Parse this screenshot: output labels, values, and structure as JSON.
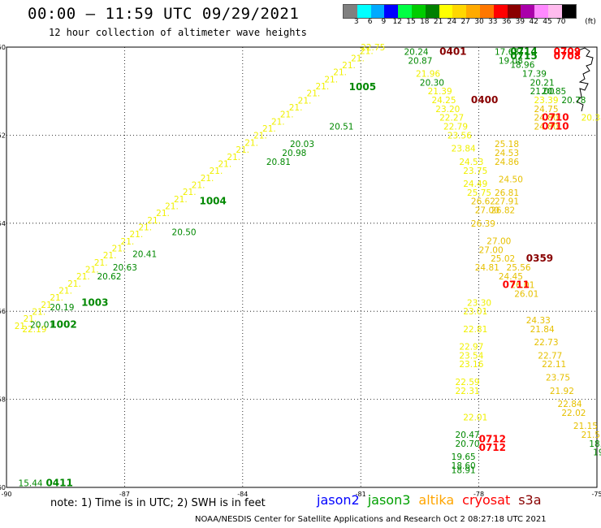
{
  "header": {
    "title": "00:00 – 11:59 UTC 09/29/2021",
    "subtitle": "12 hour collection of altimeter wave heights"
  },
  "colorbar": {
    "unit": "(ft)",
    "ticks": [
      "3",
      "6",
      "9",
      "12",
      "15",
      "18",
      "21",
      "24",
      "27",
      "30",
      "33",
      "36",
      "39",
      "42",
      "45",
      "70"
    ],
    "colors": [
      "#808080",
      "#00ffff",
      "#00aaff",
      "#0000ff",
      "#00ff44",
      "#00cc00",
      "#008000",
      "#ffff00",
      "#ffd700",
      "#ffaa00",
      "#ff7700",
      "#ff0000",
      "#8b0000",
      "#aa00aa",
      "#ff88ff",
      "#ffbbee",
      "#000000"
    ]
  },
  "axes": {
    "lon_ticks": [
      -90,
      -87,
      -84,
      -81,
      -78,
      -75
    ],
    "lat_ticks": [
      -50,
      -52,
      -54,
      -56,
      -58,
      -60
    ],
    "lon_range": [
      -90,
      -75
    ],
    "lat_range": [
      -50,
      -60
    ],
    "grid": "dotted"
  },
  "colors": {
    "jason3": "#007700",
    "altika": "#e6c000",
    "yellow_track": "#f0f000",
    "cryosat": "#ff0000",
    "s3a": "#880000",
    "green_track": "#008800"
  },
  "tracks": [
    {
      "sat": "jason3",
      "labels": [
        {
          "lon": -89.6,
          "lat": -56.4,
          "text": "22.19",
          "c": "yellow_track"
        },
        {
          "lon": -89.4,
          "lat": -56.3,
          "text": "20.01",
          "c": "green_track"
        },
        {
          "lon": -88.9,
          "lat": -55.9,
          "text": "20.19",
          "c": "green_track"
        },
        {
          "lon": -87.7,
          "lat": -55.2,
          "text": "20.62",
          "c": "green_track"
        },
        {
          "lon": -87.3,
          "lat": -55.0,
          "text": "20.63",
          "c": "green_track"
        },
        {
          "lon": -86.8,
          "lat": -54.7,
          "text": "20.41",
          "c": "green_track"
        },
        {
          "lon": -85.8,
          "lat": -54.2,
          "text": "20.50",
          "c": "green_track"
        },
        {
          "lon": -83.4,
          "lat": -52.6,
          "text": "20.81",
          "c": "green_track"
        },
        {
          "lon": -83.0,
          "lat": -52.4,
          "text": "20.98",
          "c": "green_track"
        },
        {
          "lon": -82.8,
          "lat": -52.2,
          "text": "20.03",
          "c": "green_track"
        },
        {
          "lon": -81.8,
          "lat": -51.8,
          "text": "20.51",
          "c": "green_track"
        },
        {
          "lon": -79.9,
          "lat": -50.1,
          "text": "20.24",
          "c": "green_track"
        },
        {
          "lon": -79.8,
          "lat": -50.3,
          "text": "20.87",
          "c": "green_track"
        },
        {
          "lon": -79.6,
          "lat": -50.6,
          "text": "21.96",
          "c": "yellow_track"
        },
        {
          "lon": -79.5,
          "lat": -50.8,
          "text": "20.30",
          "c": "green_track"
        },
        {
          "lon": -79.3,
          "lat": -51.0,
          "text": "21.39",
          "c": "yellow_track"
        },
        {
          "lon": -79.2,
          "lat": -51.2,
          "text": "24.25",
          "c": "yellow_track"
        },
        {
          "lon": -79.1,
          "lat": -51.4,
          "text": "23.20",
          "c": "yellow_track"
        },
        {
          "lon": -79.0,
          "lat": -51.6,
          "text": "22.27",
          "c": "yellow_track"
        },
        {
          "lon": -78.9,
          "lat": -51.8,
          "text": "22.79",
          "c": "yellow_track"
        },
        {
          "lon": -78.8,
          "lat": -52.0,
          "text": "23.56",
          "c": "yellow_track"
        },
        {
          "lon": -78.7,
          "lat": -52.3,
          "text": "23.84",
          "c": "yellow_track"
        },
        {
          "lon": -78.5,
          "lat": -52.6,
          "text": "24.53",
          "c": "yellow_track"
        },
        {
          "lon": -78.4,
          "lat": -52.8,
          "text": "23.75",
          "c": "yellow_track"
        },
        {
          "lon": -78.4,
          "lat": -53.1,
          "text": "24.49",
          "c": "yellow_track"
        },
        {
          "lon": -78.3,
          "lat": -53.3,
          "text": "25.75",
          "c": "yellow_track"
        },
        {
          "lon": -78.2,
          "lat": -53.5,
          "text": "26.62",
          "c": "altika"
        },
        {
          "lon": -78.1,
          "lat": -53.7,
          "text": "27.00",
          "c": "altika"
        },
        {
          "lon": -78.2,
          "lat": -54.0,
          "text": "26.39",
          "c": "altika"
        },
        {
          "lon": -78.0,
          "lat": -54.6,
          "text": "27.00",
          "c": "altika"
        },
        {
          "lon": -78.1,
          "lat": -55.0,
          "text": "24.81",
          "c": "altika"
        },
        {
          "lon": -78.3,
          "lat": -55.8,
          "text": "23.30",
          "c": "yellow_track"
        },
        {
          "lon": -78.4,
          "lat": -56.0,
          "text": "23.01",
          "c": "yellow_track"
        },
        {
          "lon": -78.4,
          "lat": -56.4,
          "text": "22.81",
          "c": "yellow_track"
        },
        {
          "lon": -78.5,
          "lat": -56.8,
          "text": "22.97",
          "c": "yellow_track"
        },
        {
          "lon": -78.5,
          "lat": -57.0,
          "text": "23.54",
          "c": "yellow_track"
        },
        {
          "lon": -78.5,
          "lat": -57.2,
          "text": "23.16",
          "c": "yellow_track"
        },
        {
          "lon": -78.6,
          "lat": -57.6,
          "text": "22.59",
          "c": "yellow_track"
        },
        {
          "lon": -78.6,
          "lat": -57.8,
          "text": "22.31",
          "c": "yellow_track"
        },
        {
          "lon": -78.4,
          "lat": -58.4,
          "text": "22.01",
          "c": "yellow_track"
        },
        {
          "lon": -78.6,
          "lat": -58.8,
          "text": "20.47",
          "c": "green_track"
        },
        {
          "lon": -78.6,
          "lat": -59.0,
          "text": "20.70",
          "c": "green_track"
        },
        {
          "lon": -78.7,
          "lat": -59.3,
          "text": "19.65",
          "c": "green_track"
        },
        {
          "lon": -78.7,
          "lat": -59.5,
          "text": "18.60",
          "c": "green_track"
        },
        {
          "lon": -78.7,
          "lat": -59.6,
          "text": "18.91",
          "c": "green_track"
        }
      ]
    },
    {
      "sat": "altika",
      "labels": [
        {
          "lon": -77.6,
          "lat": -52.2,
          "text": "25.18",
          "c": "altika"
        },
        {
          "lon": -77.6,
          "lat": -52.4,
          "text": "24.53",
          "c": "altika"
        },
        {
          "lon": -77.6,
          "lat": -52.6,
          "text": "24.86",
          "c": "altika"
        },
        {
          "lon": -77.5,
          "lat": -53.0,
          "text": "24.50",
          "c": "altika"
        },
        {
          "lon": -77.6,
          "lat": -53.3,
          "text": "26.81",
          "c": "altika"
        },
        {
          "lon": -77.6,
          "lat": -53.5,
          "text": "27.91",
          "c": "altika"
        },
        {
          "lon": -77.7,
          "lat": -53.7,
          "text": "26.82",
          "c": "altika"
        },
        {
          "lon": -77.8,
          "lat": -54.4,
          "text": "27.00",
          "c": "altika"
        },
        {
          "lon": -77.7,
          "lat": -54.8,
          "text": "25.02",
          "c": "altika"
        },
        {
          "lon": -77.3,
          "lat": -55.0,
          "text": "25.56",
          "c": "altika"
        },
        {
          "lon": -77.5,
          "lat": -55.2,
          "text": "24.45",
          "c": "altika"
        },
        {
          "lon": -77.2,
          "lat": -55.4,
          "text": "26.01",
          "c": "altika"
        },
        {
          "lon": -77.1,
          "lat": -55.6,
          "text": "26.01",
          "c": "altika"
        },
        {
          "lon": -76.8,
          "lat": -56.2,
          "text": "24.33",
          "c": "altika"
        },
        {
          "lon": -76.7,
          "lat": -56.4,
          "text": "21.84",
          "c": "altika"
        },
        {
          "lon": -76.6,
          "lat": -56.7,
          "text": "22.73",
          "c": "altika"
        },
        {
          "lon": -76.5,
          "lat": -57.0,
          "text": "22.77",
          "c": "altika"
        },
        {
          "lon": -76.4,
          "lat": -57.2,
          "text": "22.11",
          "c": "altika"
        },
        {
          "lon": -76.3,
          "lat": -57.5,
          "text": "23.75",
          "c": "altika"
        },
        {
          "lon": -76.2,
          "lat": -57.8,
          "text": "21.92",
          "c": "altika"
        },
        {
          "lon": -76.0,
          "lat": -58.1,
          "text": "22.84",
          "c": "altika"
        },
        {
          "lon": -75.9,
          "lat": -58.3,
          "text": "22.02",
          "c": "altika"
        },
        {
          "lon": -75.6,
          "lat": -58.6,
          "text": "21.15",
          "c": "altika"
        },
        {
          "lon": -75.4,
          "lat": -58.8,
          "text": "21.5",
          "c": "altika"
        },
        {
          "lon": -75.2,
          "lat": -59.0,
          "text": "18.7",
          "c": "green_track"
        },
        {
          "lon": -75.1,
          "lat": -59.2,
          "text": "19",
          "c": "green_track"
        },
        {
          "lon": -77.6,
          "lat": -50.1,
          "text": "17.68",
          "c": "green_track"
        },
        {
          "lon": -77.5,
          "lat": -50.3,
          "text": "19.08",
          "c": "green_track"
        },
        {
          "lon": -77.2,
          "lat": -50.4,
          "text": "18.96",
          "c": "green_track"
        },
        {
          "lon": -76.9,
          "lat": -50.6,
          "text": "17.39",
          "c": "green_track"
        },
        {
          "lon": -76.7,
          "lat": -50.8,
          "text": "20.21",
          "c": "green_track"
        },
        {
          "lon": -76.7,
          "lat": -51.0,
          "text": "21.00",
          "c": "green_track"
        },
        {
          "lon": -76.4,
          "lat": -51.0,
          "text": "20.85",
          "c": "green_track"
        },
        {
          "lon": -76.6,
          "lat": -51.2,
          "text": "23.39",
          "c": "yellow_track"
        },
        {
          "lon": -76.6,
          "lat": -51.4,
          "text": "24.75",
          "c": "altika"
        },
        {
          "lon": -76.6,
          "lat": -51.6,
          "text": "24.80",
          "c": "altika"
        },
        {
          "lon": -76.6,
          "lat": -51.8,
          "text": "24.80",
          "c": "altika"
        },
        {
          "lon": -75.9,
          "lat": -51.2,
          "text": "20.78",
          "c": "green_track"
        },
        {
          "lon": -75.4,
          "lat": -51.6,
          "text": "20.38",
          "c": "yellow_track"
        }
      ]
    }
  ],
  "pass_ids": [
    {
      "lon": -88.9,
      "lat": -56.3,
      "text": "1002",
      "c": "green_track"
    },
    {
      "lon": -88.1,
      "lat": -55.8,
      "text": "1003",
      "c": "green_track"
    },
    {
      "lon": -85.1,
      "lat": -53.5,
      "text": "1004",
      "c": "green_track"
    },
    {
      "lon": -81.3,
      "lat": -50.9,
      "text": "1005",
      "c": "green_track"
    },
    {
      "lon": -79.0,
      "lat": -50.1,
      "text": "0401",
      "c": "s3a"
    },
    {
      "lon": -78.2,
      "lat": -51.2,
      "text": "0400",
      "c": "s3a"
    },
    {
      "lon": -77.2,
      "lat": -50.1,
      "text": "0714",
      "c": "green_track"
    },
    {
      "lon": -77.2,
      "lat": -50.2,
      "text": "0715",
      "c": "green_track"
    },
    {
      "lon": -76.1,
      "lat": -50.1,
      "text": "0709",
      "c": "cryosat"
    },
    {
      "lon": -76.1,
      "lat": -50.2,
      "text": "0708",
      "c": "cryosat"
    },
    {
      "lon": -76.4,
      "lat": -51.6,
      "text": "0710",
      "c": "cryosat"
    },
    {
      "lon": -76.4,
      "lat": -51.8,
      "text": "0710",
      "c": "cryosat"
    },
    {
      "lon": -76.8,
      "lat": -54.8,
      "text": "0359",
      "c": "s3a"
    },
    {
      "lon": -77.4,
      "lat": -55.4,
      "text": "0711",
      "c": "cryosat"
    },
    {
      "lon": -78.0,
      "lat": -58.9,
      "text": "0712",
      "c": "cryosat"
    },
    {
      "lon": -78.0,
      "lat": -59.1,
      "text": "0712",
      "c": "cryosat"
    },
    {
      "lon": -89.0,
      "lat": -59.9,
      "text": "0411",
      "c": "green_track"
    }
  ],
  "extra_labels": [
    {
      "lon": -89.7,
      "lat": -59.9,
      "text": "15.44",
      "c": "green_track"
    },
    {
      "lon": -81.0,
      "lat": -50.0,
      "text": "22.75",
      "c": "yellow_track"
    }
  ],
  "footer": {
    "note": "note: 1) Time is in UTC; 2) SWH is in feet",
    "satellites": [
      {
        "name": "jason2",
        "color": "#0000ff"
      },
      {
        "name": "jason3",
        "color": "#00a000"
      },
      {
        "name": "altika",
        "color": "#ffa500"
      },
      {
        "name": "cryosat",
        "color": "#ff0000"
      },
      {
        "name": "s3a",
        "color": "#880000"
      }
    ],
    "credit": "NOAA/NESDIS Center for Satellite Applications and Research   Oct  2 08:27:18 UTC 2021"
  }
}
